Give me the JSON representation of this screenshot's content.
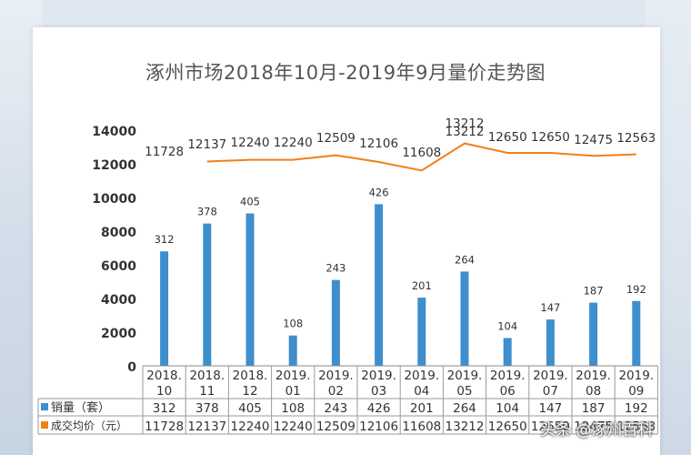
{
  "chart_data": {
    "type": "bar",
    "title": "涿州市场2018年10月-2019年9月量价走势图",
    "categories_line1": [
      "2018.",
      "2018.",
      "2018.",
      "2019.",
      "2019.",
      "2019.",
      "2019.",
      "2019.",
      "2019.",
      "2019.",
      "2019.",
      "2019."
    ],
    "categories_line2": [
      "10",
      "11",
      "12",
      "01",
      "02",
      "03",
      "04",
      "05",
      "06",
      "07",
      "08",
      "09"
    ],
    "ylim": [
      0,
      14000
    ],
    "yticks": [
      0,
      2000,
      4000,
      6000,
      8000,
      10000,
      12000,
      14000
    ],
    "series": [
      {
        "name": "销量（套）",
        "kind": "bar",
        "color": "#3d8fcd",
        "values": [
          312,
          378,
          405,
          108,
          243,
          426,
          201,
          264,
          104,
          147,
          187,
          192
        ],
        "bar_heights_on_axis": [
          6800,
          8450,
          9050,
          1800,
          5100,
          9600,
          4050,
          5600,
          1650,
          2750,
          3750,
          3850
        ]
      },
      {
        "name": "成交均价（元）",
        "kind": "line",
        "color": "#f07f1b",
        "values": [
          11728,
          12137,
          12240,
          12240,
          12509,
          12106,
          11608,
          13212,
          12650,
          12650,
          12475,
          12563
        ]
      }
    ],
    "extra_label": "13212",
    "grid": false,
    "legend": "table-below"
  },
  "watermark": "头条 @涿州百科"
}
